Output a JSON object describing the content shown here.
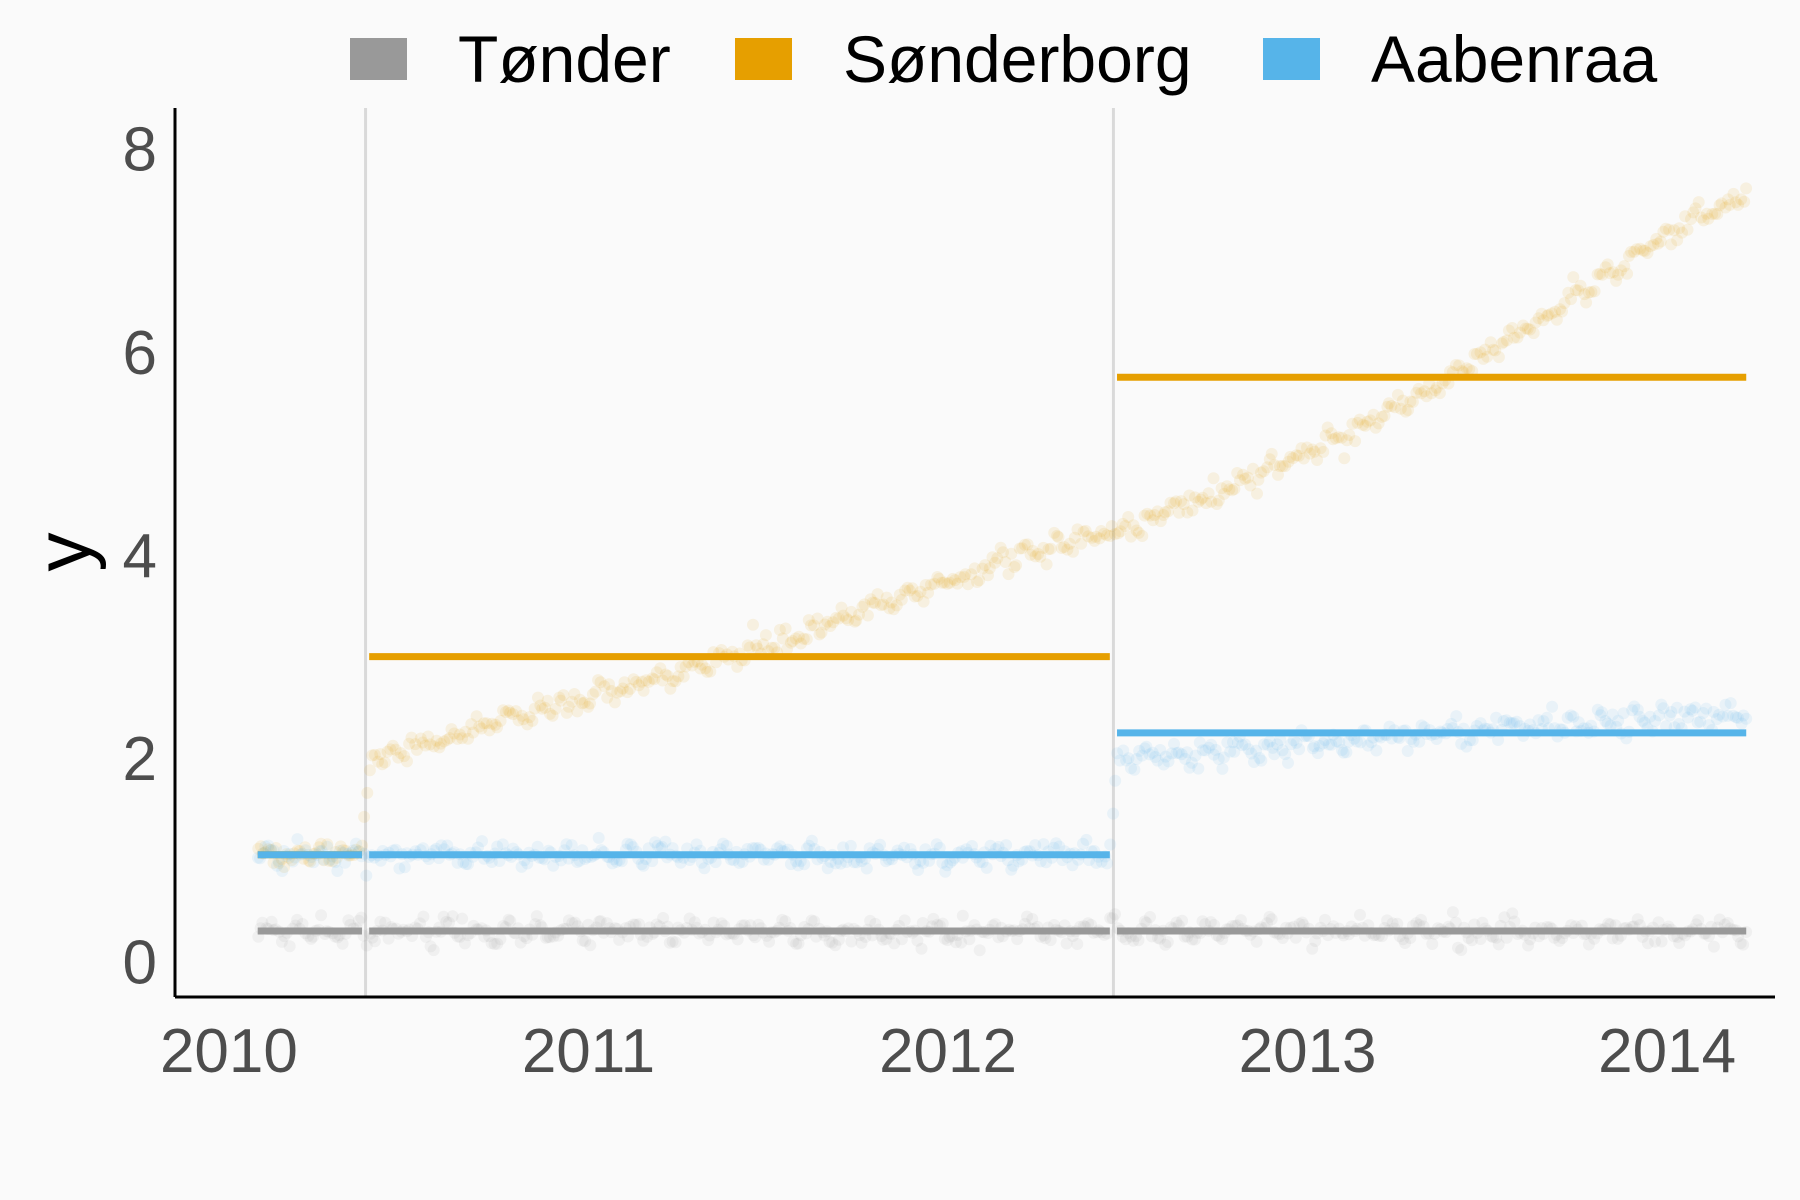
{
  "chart_data": {
    "type": "scatter",
    "title": "",
    "xlabel": "",
    "ylabel": "y",
    "xlim": [
      2009.85,
      2014.3
    ],
    "ylim": [
      -0.35,
      8.4
    ],
    "x_ticks": [
      "2010",
      "2011",
      "2012",
      "2013",
      "2014"
    ],
    "y_ticks": [
      "0",
      "2",
      "4",
      "6",
      "8"
    ],
    "grid": false,
    "vertical_reference_lines": [
      2010.38,
      2012.46
    ],
    "legend_position": "top",
    "segments": [
      {
        "start": 2010.08,
        "end": 2010.37
      },
      {
        "start": 2010.39,
        "end": 2012.45
      },
      {
        "start": 2012.47,
        "end": 2014.22
      }
    ],
    "series": [
      {
        "name": "Tønder",
        "color": "#999999",
        "points": [
          [
            2010.08,
            0.3
          ],
          [
            2014.22,
            0.3
          ]
        ],
        "segment_means": [
          0.3,
          0.3,
          0.3
        ]
      },
      {
        "name": "Sønderborg",
        "color": "#E69F00",
        "points": [
          [
            2010.08,
            1.05
          ],
          [
            2010.37,
            1.05
          ],
          [
            2010.39,
            2.0
          ],
          [
            2010.8,
            2.4
          ],
          [
            2011.2,
            2.78
          ],
          [
            2011.6,
            3.25
          ],
          [
            2012.0,
            3.75
          ],
          [
            2012.3,
            4.1
          ],
          [
            2012.45,
            4.22
          ],
          [
            2012.47,
            4.22
          ],
          [
            2012.8,
            4.68
          ],
          [
            2013.1,
            5.18
          ],
          [
            2013.4,
            5.75
          ],
          [
            2013.7,
            6.45
          ],
          [
            2014.0,
            7.15
          ],
          [
            2014.22,
            7.6
          ]
        ],
        "segment_means": [
          1.05,
          3.0,
          5.75
        ]
      },
      {
        "name": "Aabenraa",
        "color": "#56B4E9",
        "points": [
          [
            2010.08,
            1.05
          ],
          [
            2010.37,
            1.05
          ],
          [
            2010.39,
            1.05
          ],
          [
            2012.45,
            1.05
          ],
          [
            2012.47,
            2.0
          ],
          [
            2013.0,
            2.15
          ],
          [
            2013.5,
            2.3
          ],
          [
            2014.22,
            2.43
          ]
        ],
        "segment_means": [
          1.05,
          1.05,
          2.25
        ]
      }
    ]
  }
}
